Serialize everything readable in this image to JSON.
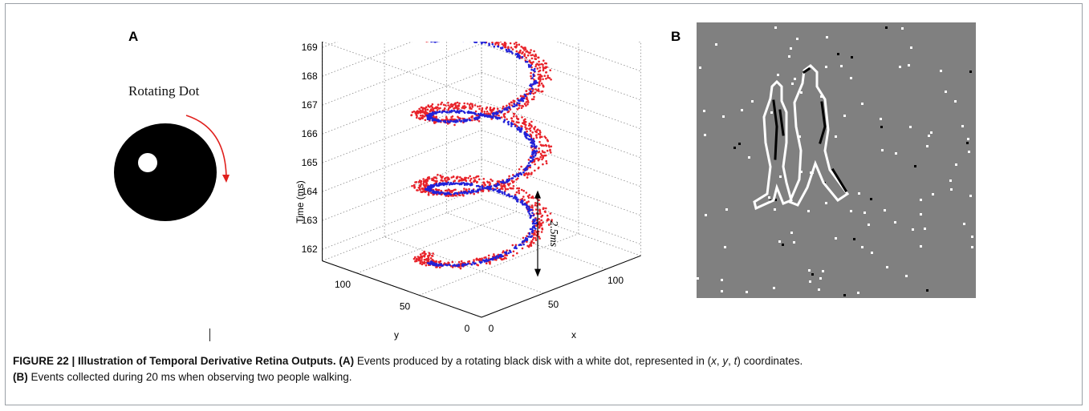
{
  "panels": {
    "a_letter": "A",
    "b_letter": "B"
  },
  "panel_a": {
    "disk_label": "Rotating Dot"
  },
  "chart_data": {
    "type": "scatter",
    "projection": "3d",
    "xlabel": "x",
    "ylabel": "y",
    "zlabel": "Time (ms)",
    "x_ticks": [
      "0",
      "50",
      "100"
    ],
    "y_ticks": [
      "0",
      "50",
      "100"
    ],
    "z_ticks": [
      "162",
      "163",
      "164",
      "165",
      "166",
      "167",
      "168",
      "169"
    ],
    "xlim": [
      0,
      128
    ],
    "ylim": [
      0,
      128
    ],
    "zlim": [
      161.5,
      169.2
    ],
    "grid": true,
    "annotation": "2.5ms",
    "series": [
      {
        "color": "#e8232a",
        "helix": "red",
        "z_start": 161.5,
        "z_end": 169.0,
        "period_ms": 2.5
      },
      {
        "color": "#2222d8",
        "helix": "blue",
        "z_start": 161.6,
        "z_end": 168.9,
        "period_ms": 2.5
      }
    ]
  },
  "caption": {
    "figure_label": "FIGURE 22 | Illustration of Temporal Derivative Retina Outputs.",
    "a_ref": "(A)",
    "a_text": " Events produced by a rotating black disk with a white dot, represented in (",
    "coords_x": "x",
    "coords_y": "y",
    "coords_t": "t",
    "a_text_end": ") coordinates.",
    "b_ref": "(B)",
    "b_text": " Events collected during 20 ms when observing two people walking."
  }
}
